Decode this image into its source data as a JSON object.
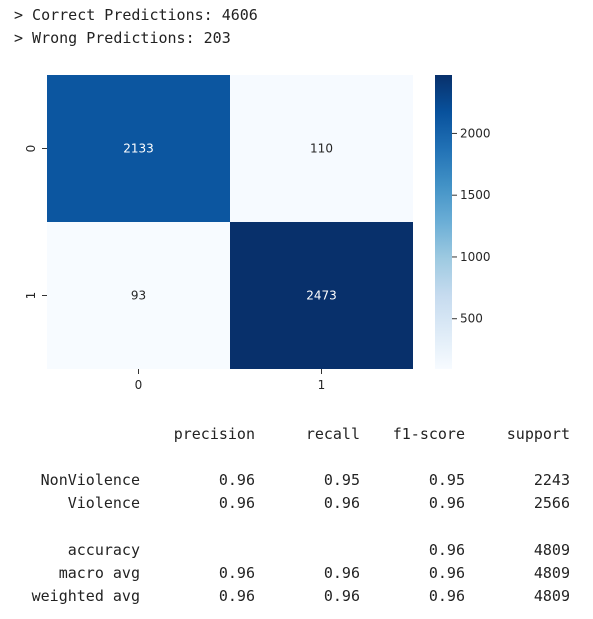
{
  "console": {
    "correct_line": "> Correct Predictions: 4606",
    "wrong_line": "> Wrong Predictions: 203"
  },
  "chart_data": {
    "type": "heatmap",
    "title": "",
    "xlabel": "",
    "ylabel": "",
    "x_categories": [
      "0",
      "1"
    ],
    "y_categories": [
      "0",
      "1"
    ],
    "values": [
      [
        2133,
        110
      ],
      [
        93,
        2473
      ]
    ],
    "colormap": "Blues",
    "color_low": "#f7fbff",
    "color_high": "#08306b",
    "colorbar": {
      "range": [
        93,
        2473
      ],
      "ticks": [
        500,
        1000,
        1500,
        2000
      ],
      "placement": "right"
    }
  },
  "report": {
    "headers": [
      "precision",
      "recall",
      "f1-score",
      "support"
    ],
    "rows": [
      {
        "label": "NonViolence",
        "values": [
          "0.96",
          "0.95",
          "0.95",
          "2243"
        ]
      },
      {
        "label": "Violence",
        "values": [
          "0.96",
          "0.96",
          "0.96",
          "2566"
        ]
      },
      {
        "label": "accuracy",
        "values": [
          "",
          "",
          "0.96",
          "4809"
        ]
      },
      {
        "label": "macro avg",
        "values": [
          "0.96",
          "0.96",
          "0.96",
          "4809"
        ]
      },
      {
        "label": "weighted avg",
        "values": [
          "0.96",
          "0.96",
          "0.96",
          "4809"
        ]
      }
    ]
  }
}
